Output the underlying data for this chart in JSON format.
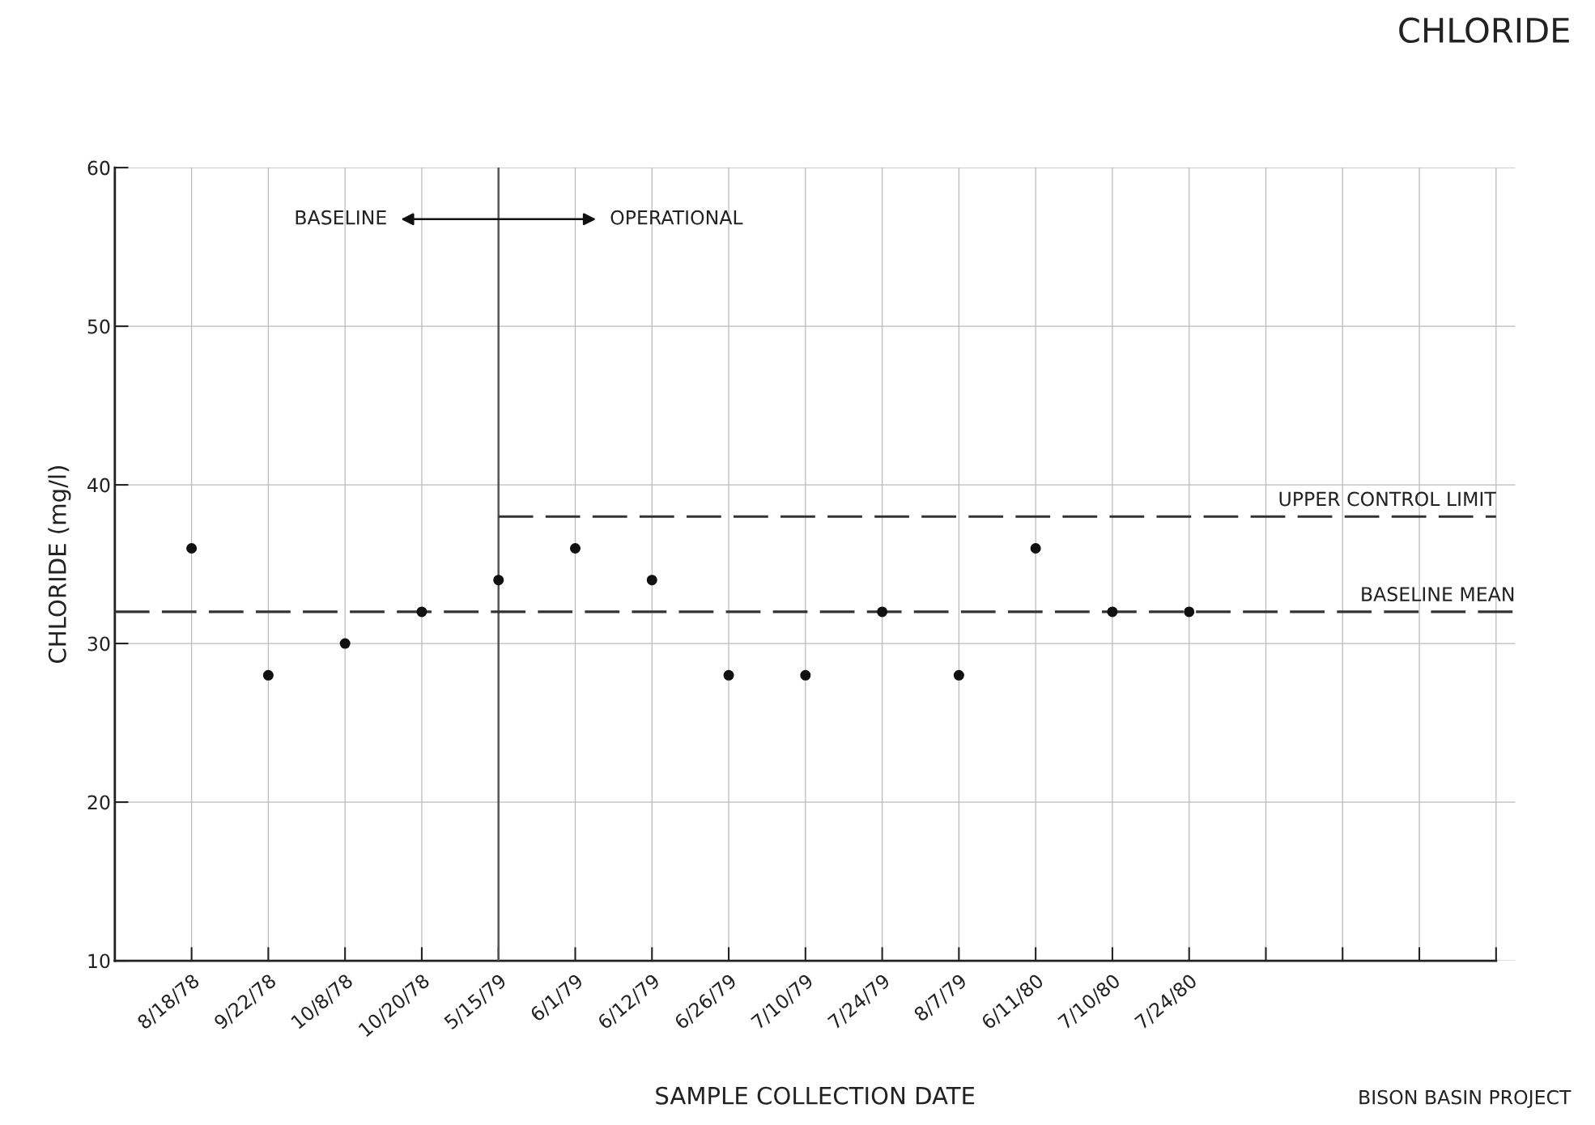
{
  "chart_data": {
    "type": "scatter",
    "title": "CHLORIDE",
    "xlabel": "SAMPLE COLLECTION DATE",
    "ylabel": "CHLORIDE (mg/l)",
    "categories": [
      "8/18/78",
      "9/22/78",
      "10/8/78",
      "10/20/78",
      "5/15/79",
      "6/1/79",
      "6/12/79",
      "6/26/79",
      "7/10/79",
      "7/24/79",
      "8/7/79",
      "6/11/80",
      "7/10/80",
      "7/24/80",
      null,
      null,
      null,
      null
    ],
    "series": [
      {
        "color": "#111111",
        "values": [
          36,
          28,
          30,
          32,
          34,
          36,
          34,
          28,
          28,
          32,
          28,
          36,
          32,
          32,
          null,
          null,
          null,
          null
        ]
      },
      {
        "type": "line",
        "name": "UPPER CONTROL LIMIT",
        "color": "#333333",
        "line_style": "dashed",
        "marker": "none",
        "values": [
          null,
          null,
          null,
          null,
          38,
          38,
          38,
          38,
          38,
          38,
          38,
          38,
          38,
          38,
          38,
          38,
          38,
          38
        ]
      }
    ],
    "ylim": [
      10,
      60
    ],
    "yticks": [
      10,
      20,
      30,
      40,
      50,
      60
    ],
    "grid": true,
    "marker": "circle",
    "ref_lines": [
      {
        "axis": "x",
        "value": "5/15/79",
        "color": "#555555"
      },
      {
        "axis": "y",
        "value": 32,
        "label": "BASELINE MEAN",
        "line_style": "dashed",
        "color": "#333333"
      }
    ],
    "annotations": [
      "BASELINE",
      "OPERATIONAL",
      "BISON BASIN PROJECT"
    ]
  }
}
